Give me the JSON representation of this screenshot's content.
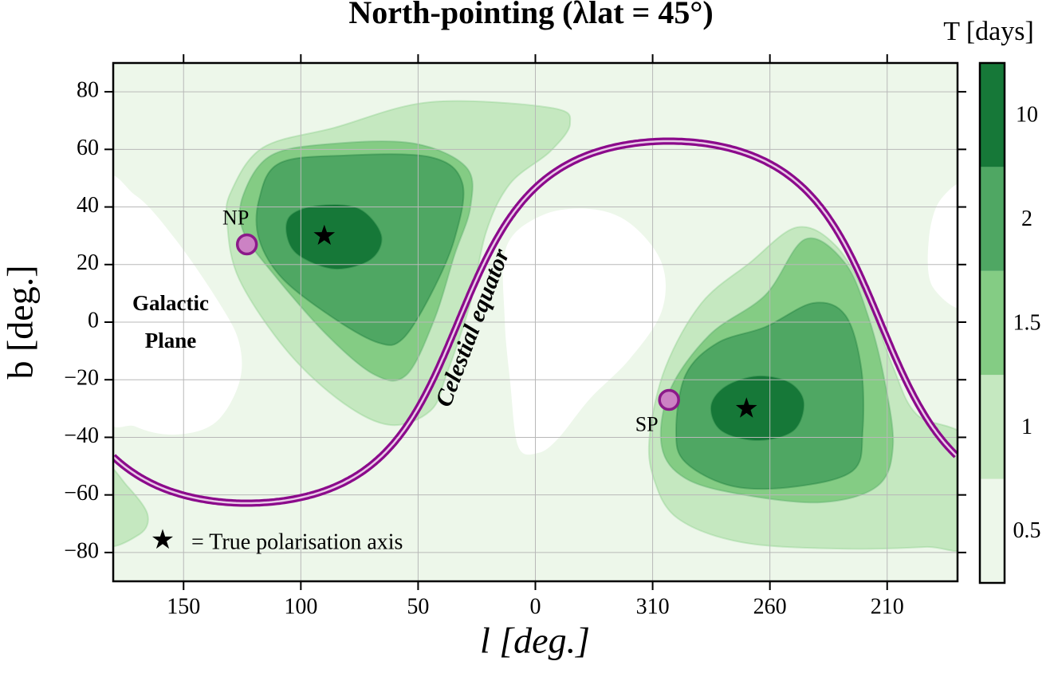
{
  "chart_data": {
    "type": "contour",
    "title": "North-pointing (λlat = 45°)",
    "xlabel": "l [deg.]",
    "ylabel": "b [deg.]",
    "xlim": [
      180,
      -180
    ],
    "xticks": [
      150,
      100,
      50,
      0,
      {
        "value": -50,
        "label": "310"
      },
      {
        "value": -100,
        "label": "260"
      },
      {
        "value": -150,
        "label": "210"
      }
    ],
    "ylim": [
      -90,
      90
    ],
    "yticks": [
      {
        "value": -80,
        "label": "−80"
      },
      {
        "value": -60,
        "label": "−60"
      },
      {
        "value": -40,
        "label": "−40"
      },
      {
        "value": -20,
        "label": "−20"
      },
      0,
      20,
      40,
      60,
      80
    ],
    "grid": true,
    "colorbar": {
      "label": "T [days]",
      "ticks": [
        0.5,
        1,
        1.5,
        2,
        10
      ],
      "colors": [
        "#edf7ea",
        "#c5e8c0",
        "#84cc84",
        "#4fa763",
        "#167838"
      ]
    },
    "points": [
      {
        "label": "NP",
        "l": 123,
        "b": 27
      },
      {
        "label": "SP",
        "l": -57,
        "b": -27
      }
    ],
    "point_color": "#8b1a89",
    "point_fill": "#cc82c4",
    "stars": [
      {
        "l": 90,
        "b": 30
      },
      {
        "l": -90,
        "b": -30
      }
    ],
    "equator_color": "#8b0a8b",
    "annotations": [
      "Galactic",
      "Plane",
      "Celestial equator"
    ],
    "legend": {
      "marker": "★",
      "label": "= True polarisation axis"
    }
  }
}
